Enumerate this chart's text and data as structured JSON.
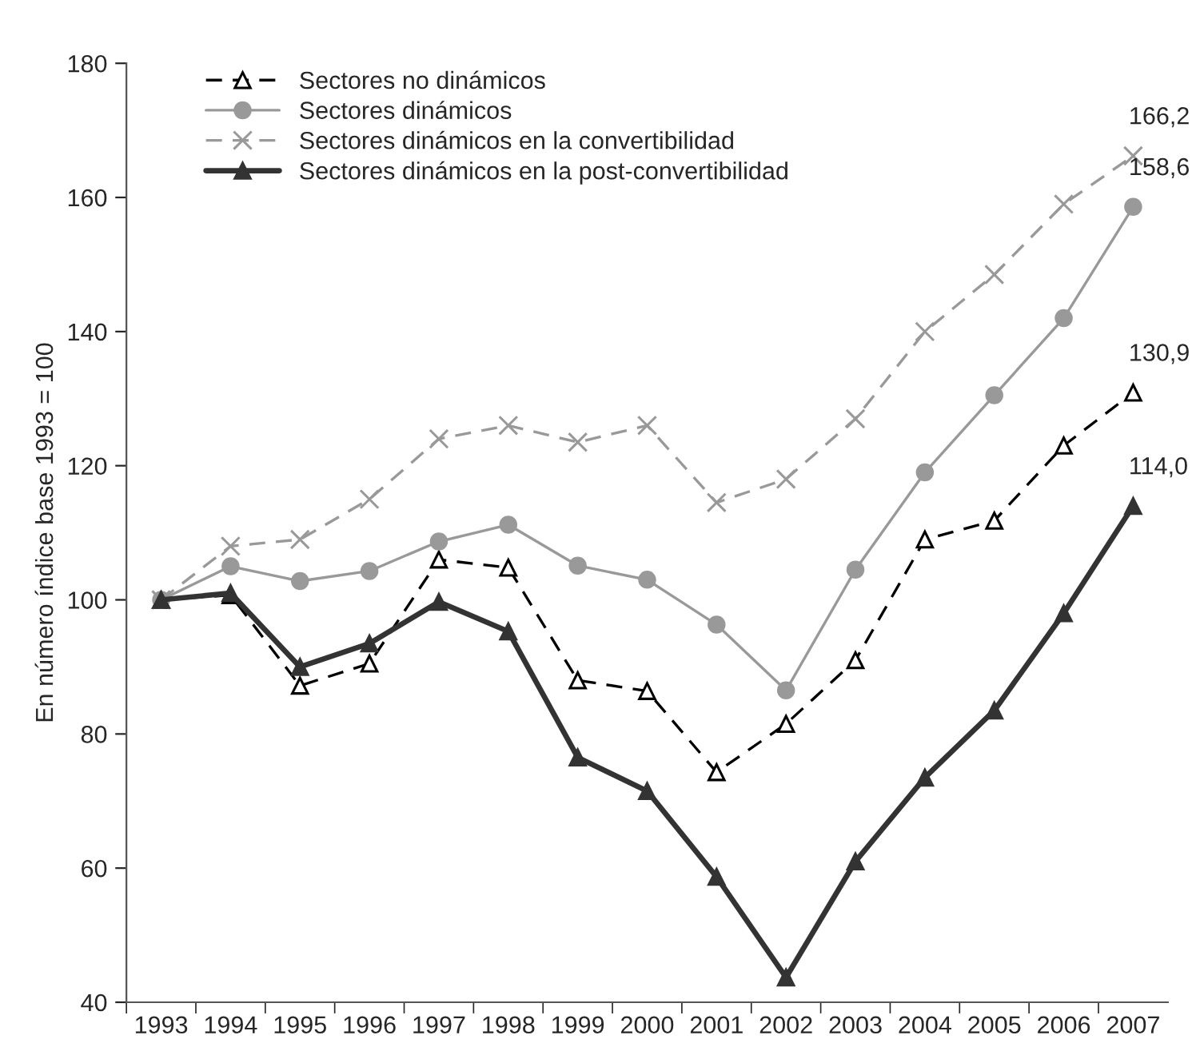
{
  "chart_data": {
    "type": "line",
    "ylabel": "En número índice base 1993 = 100",
    "categories": [
      "1993",
      "1994",
      "1995",
      "1996",
      "1997",
      "1998",
      "1999",
      "2000",
      "2001",
      "2002",
      "2003",
      "2004",
      "2005",
      "2006",
      "2007"
    ],
    "series": [
      {
        "name": "Sectores no dinámicos",
        "color": "#000000",
        "marker": "triangle",
        "line_style": "dashed",
        "values": [
          100,
          100.7,
          87.2,
          90.5,
          106,
          104.8,
          88,
          86.4,
          74.3,
          81.5,
          91,
          109,
          111.8,
          123,
          130.9
        ],
        "value_labels": [
          null,
          null,
          null,
          null,
          null,
          null,
          null,
          null,
          null,
          null,
          null,
          null,
          null,
          null,
          "130,9"
        ]
      },
      {
        "name": "Sectores dinámicos",
        "color": "#999999",
        "marker": "circle",
        "line_style": "solid",
        "values": [
          100,
          105,
          102.8,
          104.3,
          108.7,
          111.2,
          105.1,
          103,
          96.3,
          86.5,
          104.5,
          119,
          130.5,
          142,
          158.6
        ],
        "value_labels": [
          null,
          null,
          null,
          null,
          null,
          null,
          null,
          null,
          null,
          null,
          null,
          null,
          null,
          null,
          "158,6"
        ]
      },
      {
        "name": "Sectores dinámicos en la convertibilidad",
        "color": "#999999",
        "marker": "cross",
        "line_style": "dashed",
        "values": [
          100,
          108,
          109,
          115,
          124,
          126,
          123.5,
          126,
          114.5,
          118,
          127,
          140,
          148.5,
          159,
          166.2
        ],
        "value_labels": [
          null,
          null,
          null,
          null,
          null,
          null,
          null,
          null,
          null,
          null,
          null,
          null,
          null,
          null,
          "166,2"
        ]
      },
      {
        "name": "Sectores dinámicos en la post-convertibilidad",
        "color": "#333333",
        "marker": "triangle",
        "line_style": "solid",
        "values": [
          100,
          101,
          90,
          93.5,
          99.7,
          95.3,
          76.5,
          71.5,
          58.7,
          43.7,
          61,
          73.5,
          83.5,
          98,
          114.0
        ],
        "value_labels": [
          null,
          null,
          null,
          null,
          null,
          null,
          null,
          null,
          null,
          null,
          null,
          null,
          null,
          null,
          "114,0"
        ]
      }
    ],
    "ylim": [
      40,
      180
    ],
    "yticks": [
      40,
      60,
      80,
      100,
      120,
      140,
      160,
      180
    ],
    "legend": "top left",
    "grid": false
  }
}
